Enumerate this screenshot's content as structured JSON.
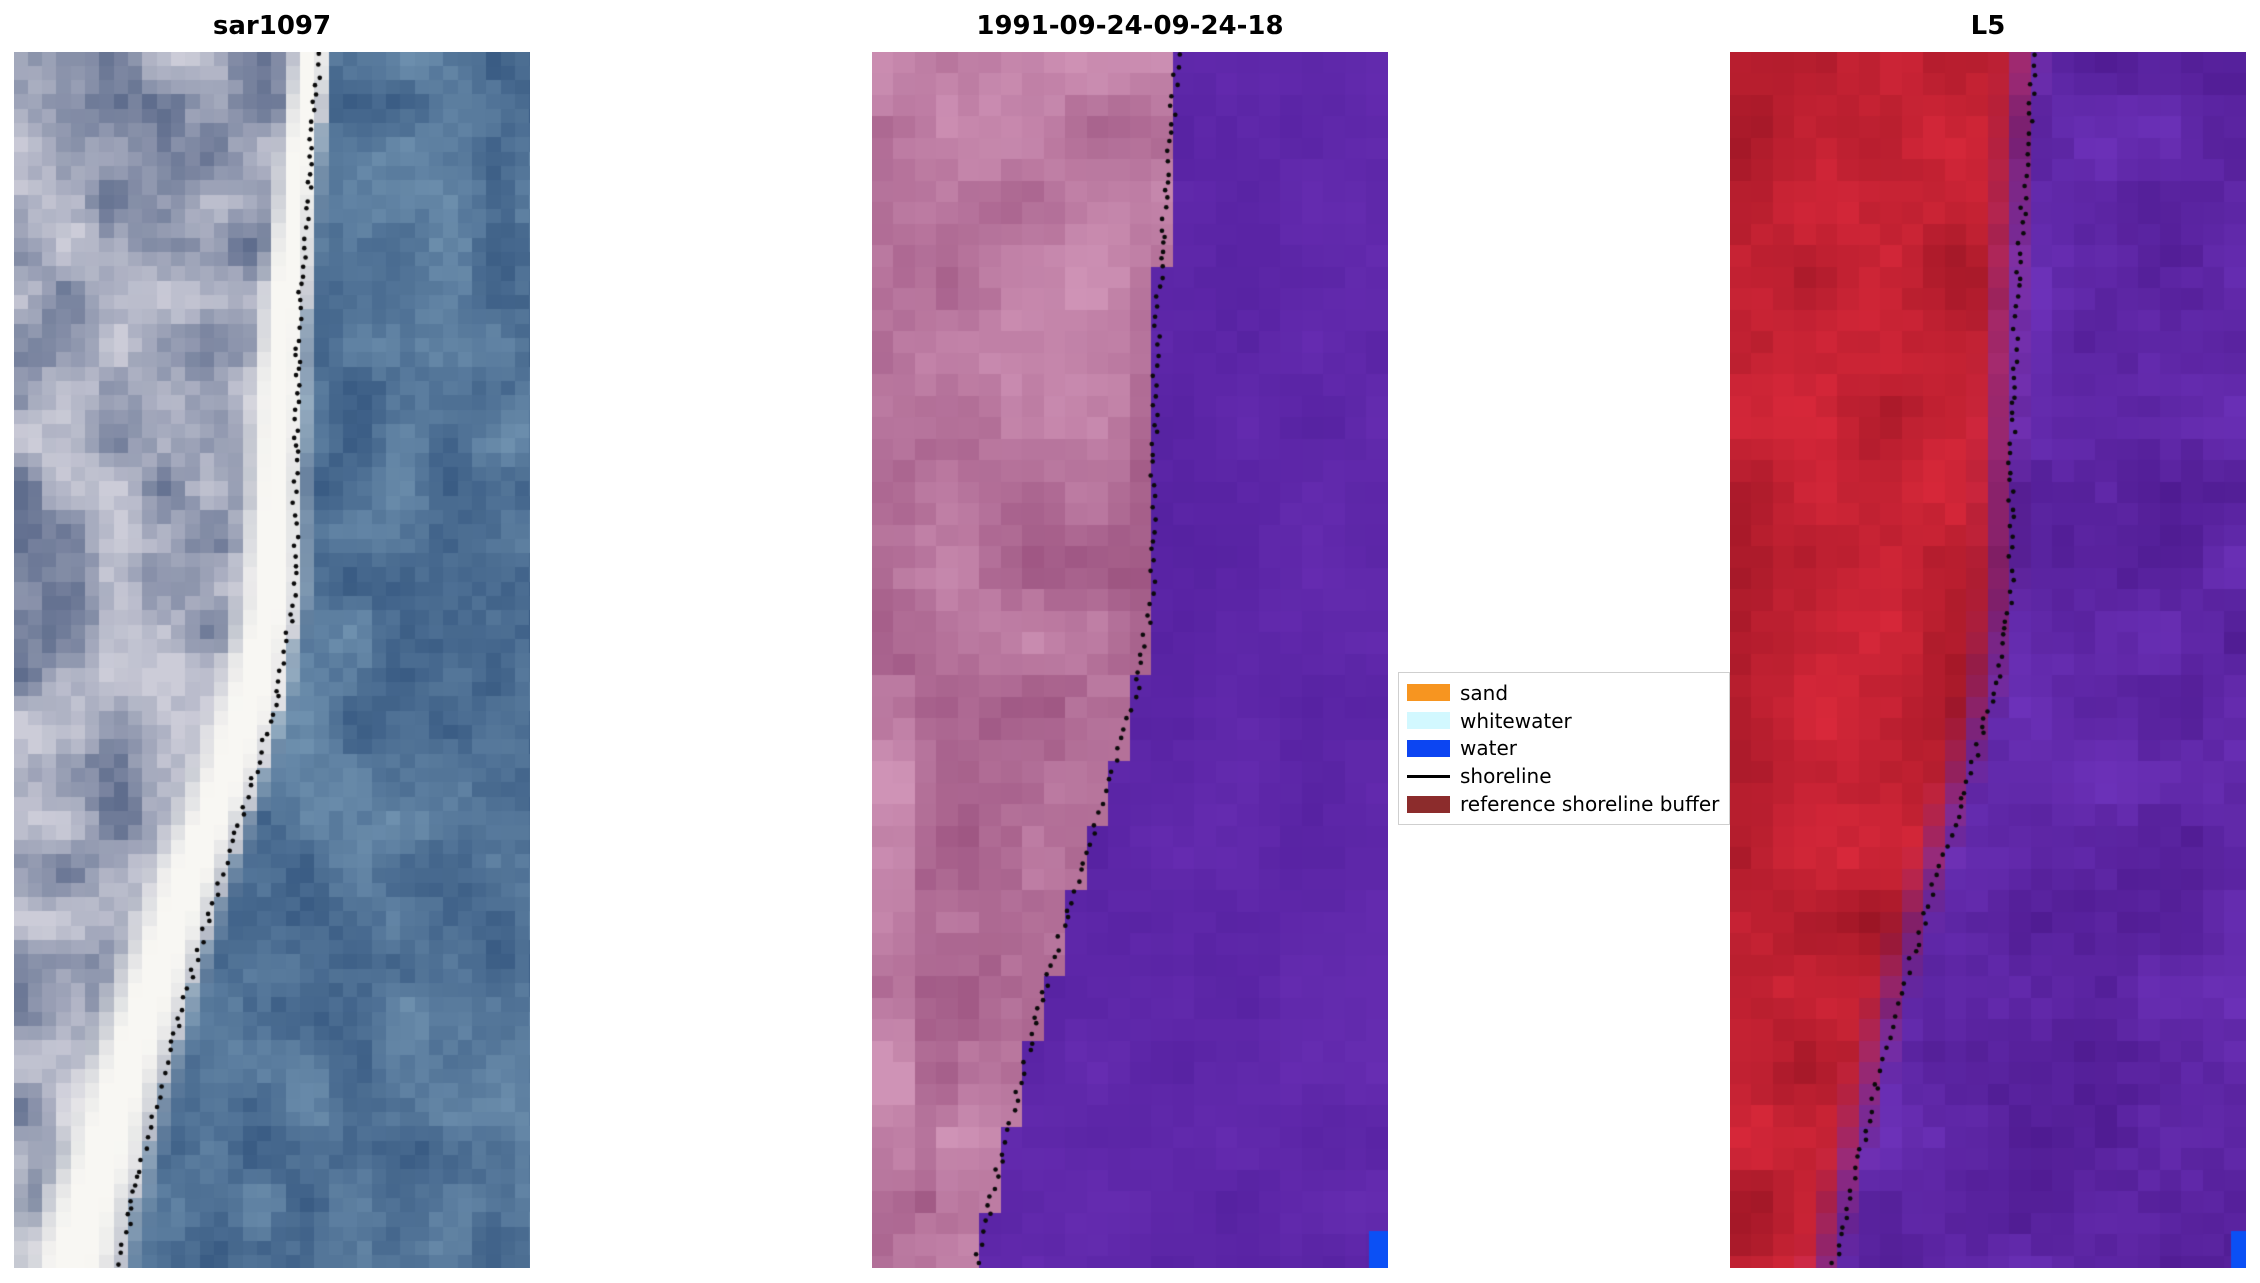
{
  "figure": {
    "background": "#ffffff"
  },
  "chart_data": {
    "type": "heatmap",
    "description": "Three-panel coastal shoreline-mapping figure: SAR backscatter image (sar1097), classified satellite image (1991-09-24-09-24-18) showing reference shoreline buffer over water, and Landsat 5 (L5) false-colour image; the mapped shoreline is overlaid as black dotted markers on every panel.",
    "panels": [
      {
        "id": "sar1097",
        "title": "sar1097",
        "renderer": "sar",
        "colors": {
          "water_dark": "#3a5c84",
          "water_light": "#6e90ae",
          "beach": "#f8f7f3",
          "land_dark": "#5f6d8d",
          "land_light": "#ccccd8"
        }
      },
      {
        "id": "classified",
        "title": "1991-09-24-09-24-18",
        "renderer": "classified",
        "colors": {
          "buffer_dark": "#9c5380",
          "buffer_light": "#cf93b6",
          "water_dark": "#4f1d9a",
          "water_light": "#6a2fb5"
        },
        "corner": {
          "color": "#0b50f5",
          "w": 19,
          "h": 37
        }
      },
      {
        "id": "L5",
        "title": "L5",
        "renderer": "l5",
        "colors": {
          "land_dark": "#8e1120",
          "land_light": "#d8283a",
          "water_dark": "#481688",
          "water_light": "#7034be"
        },
        "corner": {
          "color": "#0b50f5",
          "w": 15,
          "h": 37
        }
      }
    ],
    "shoreline": {
      "style": "black dotted markers",
      "points_t_xfrac": [
        [
          0,
          0.592
        ],
        [
          0.1,
          0.573
        ],
        [
          0.22,
          0.553
        ],
        [
          0.34,
          0.545
        ],
        [
          0.44,
          0.545
        ],
        [
          0.52,
          0.515
        ],
        [
          0.6,
          0.462
        ],
        [
          0.7,
          0.385
        ],
        [
          0.8,
          0.315
        ],
        [
          0.9,
          0.255
        ],
        [
          1,
          0.2
        ]
      ]
    },
    "legend": {
      "items": [
        {
          "label": "sand",
          "color": "#f79520",
          "swatch": "patch"
        },
        {
          "label": "whitewater",
          "color": "#d2f8ff",
          "swatch": "patch"
        },
        {
          "label": "water",
          "color": "#0c45f2",
          "swatch": "patch"
        },
        {
          "label": "shoreline",
          "color": "#000000",
          "swatch": "line"
        },
        {
          "label": "reference shoreline buffer",
          "color": "#8c2c2c",
          "swatch": "patch"
        }
      ]
    }
  }
}
